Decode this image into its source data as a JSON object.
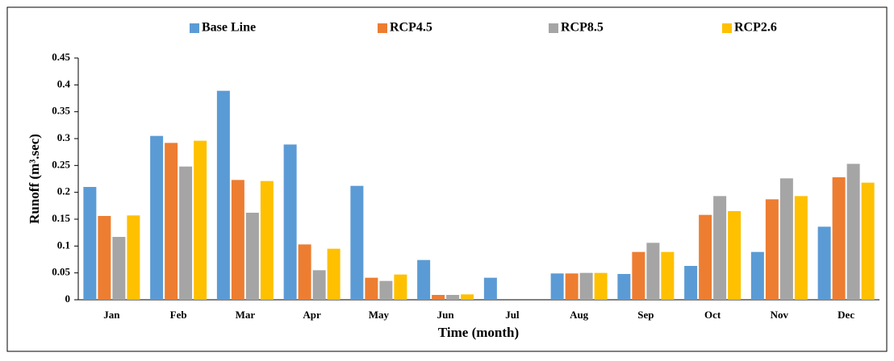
{
  "chart_data": {
    "type": "bar",
    "x_label": "Time (month)",
    "y_label": "Runoff (m³.sec)",
    "categories": [
      "Jan",
      "Feb",
      "Mar",
      "Apr",
      "May",
      "Jun",
      "Jul",
      "Aug",
      "Sep",
      "Oct",
      "Nov",
      "Dec"
    ],
    "series": [
      {
        "name": "Base Line",
        "color": "#5B9BD5",
        "values": [
          0.21,
          0.305,
          0.389,
          0.289,
          0.212,
          0.074,
          0.041,
          0.049,
          0.048,
          0.063,
          0.089,
          0.136
        ]
      },
      {
        "name": "RCP4.5",
        "color": "#ED7D31",
        "values": [
          0.156,
          0.292,
          0.223,
          0.103,
          0.041,
          0.009,
          0,
          0.049,
          0.089,
          0.158,
          0.187,
          0.228
        ]
      },
      {
        "name": "RCP8.5",
        "color": "#A5A5A5",
        "values": [
          0.117,
          0.248,
          0.162,
          0.055,
          0.035,
          0.009,
          0,
          0.05,
          0.106,
          0.193,
          0.226,
          0.253
        ]
      },
      {
        "name": "RCP2.6",
        "color": "#FFC000",
        "values": [
          0.157,
          0.296,
          0.221,
          0.095,
          0.047,
          0.01,
          0,
          0.05,
          0.089,
          0.165,
          0.193,
          0.218
        ]
      }
    ],
    "ylim": [
      0,
      0.45
    ],
    "yticks": [
      0,
      0.05,
      0.1,
      0.15,
      0.2,
      0.25,
      0.3,
      0.35,
      0.4,
      0.45
    ],
    "grid": false,
    "legend": "top"
  }
}
